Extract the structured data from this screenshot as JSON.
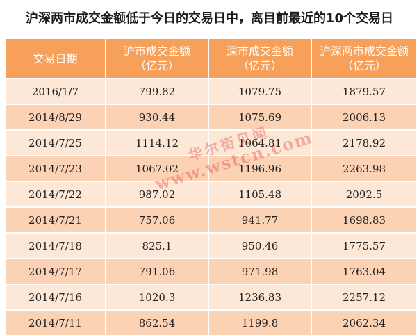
{
  "title": "沪深两市成交金额低于今日的交易日中，离目前最近的10个交易日",
  "table": {
    "headers": [
      "交易日期",
      "沪市成交金额（亿元）",
      "深市成交金额（亿元）",
      "沪深两市成交金额（亿元）"
    ],
    "rows": [
      [
        "2016/1/7",
        "799.82",
        "1079.75",
        "1879.57"
      ],
      [
        "2014/8/29",
        "930.44",
        "1075.69",
        "2006.13"
      ],
      [
        "2014/7/25",
        "1114.12",
        "1064.81",
        "2178.92"
      ],
      [
        "2014/7/23",
        "1067.02",
        "1196.96",
        "2263.98"
      ],
      [
        "2014/7/22",
        "987.02",
        "1105.48",
        "2092.5"
      ],
      [
        "2014/7/21",
        "757.06",
        "941.77",
        "1698.83"
      ],
      [
        "2014/7/18",
        "825.1",
        "950.46",
        "1775.57"
      ],
      [
        "2014/7/17",
        "791.06",
        "971.98",
        "1763.04"
      ],
      [
        "2014/7/16",
        "1020.3",
        "1236.83",
        "2257.12"
      ],
      [
        "2014/7/11",
        "862.54",
        "1199.8",
        "2062.34"
      ]
    ]
  },
  "watermark": {
    "brand": "华尔街见闻",
    "site": "www.wstcn.com"
  },
  "colors": {
    "header_bg": "#f6a05a",
    "row_light": "#fde7d6",
    "row_dark": "#fbd2b4",
    "watermark": "#e2463c"
  }
}
